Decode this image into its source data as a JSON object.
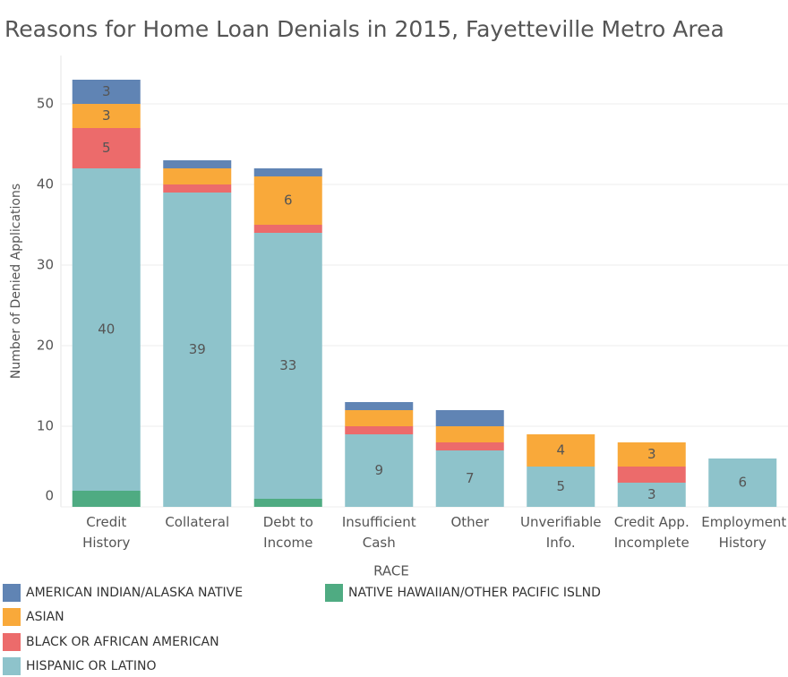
{
  "chart_data": {
    "type": "stacked_bar",
    "title": "Reasons for Home Loan Denials in 2015, Fayetteville Metro Area",
    "y_label": "Number of Denied Applications",
    "legend_title": "RACE",
    "categories": [
      "Credit History",
      "Collateral",
      "Debt to Income",
      "Insufficient Cash",
      "Other",
      "Unverifiable Info.",
      "Credit App. Incomplete",
      "Employment History"
    ],
    "series": [
      {
        "name": "NATIVE HAWAIIAN/OTHER PACIFIC ISLND",
        "color": "#4fab82",
        "values": [
          2,
          0,
          1,
          0,
          0,
          0,
          0,
          0
        ]
      },
      {
        "name": "HISPANIC OR LATINO",
        "color": "#8ec3cb",
        "values": [
          40,
          39,
          33,
          9,
          7,
          5,
          3,
          6
        ]
      },
      {
        "name": "BLACK OR AFRICAN AMERICAN",
        "color": "#ec6b6b",
        "values": [
          5,
          1,
          1,
          1,
          1,
          0,
          2,
          0
        ]
      },
      {
        "name": "ASIAN",
        "color": "#f9a93a",
        "values": [
          3,
          2,
          6,
          2,
          2,
          4,
          3,
          0
        ]
      },
      {
        "name": "AMERICAN INDIAN/ALASKA NATIVE",
        "color": "#6084b4",
        "values": [
          3,
          1,
          1,
          1,
          2,
          0,
          0,
          0
        ]
      }
    ],
    "ylim": [
      0,
      56
    ],
    "yticks": [
      0,
      10,
      20,
      30,
      40,
      50
    ],
    "grid": true
  }
}
